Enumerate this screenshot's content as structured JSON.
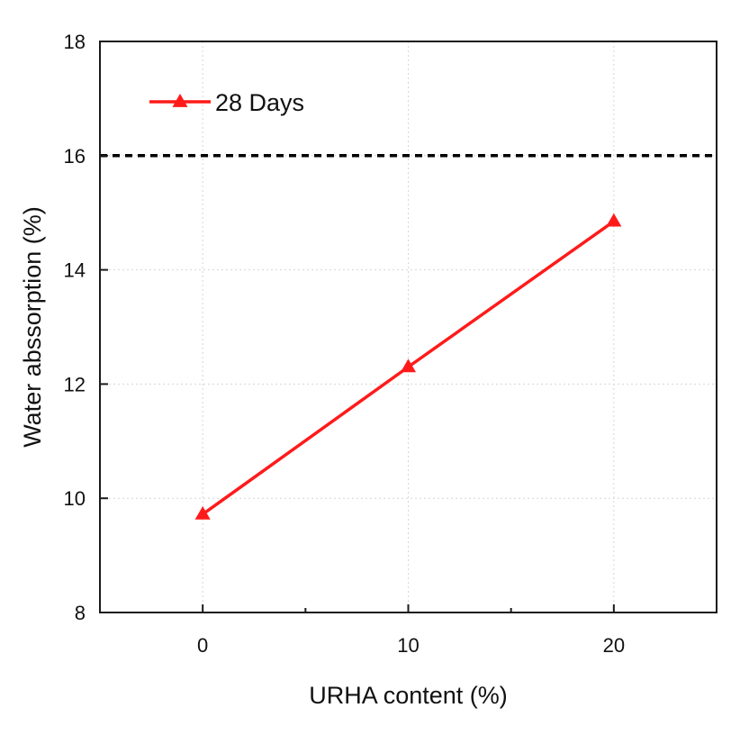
{
  "chart_data": {
    "type": "line",
    "title": "",
    "xlabel": "URHA content (%)",
    "ylabel": "Water abssorption (%)",
    "xlim": [
      -5,
      25
    ],
    "ylim": [
      8,
      18
    ],
    "x_ticks": [
      0,
      10,
      20
    ],
    "x_tick_labels": [
      "0",
      "10",
      "20"
    ],
    "x_minor_ticks": [
      5,
      15
    ],
    "y_ticks": [
      8,
      10,
      12,
      14,
      16,
      18
    ],
    "y_tick_labels": [
      "8",
      "10",
      "12",
      "14",
      "16",
      "18"
    ],
    "grid": true,
    "legend_position": "top-left",
    "series": [
      {
        "name": "28 Days",
        "color": "#ff1a1a",
        "marker": "triangle",
        "x": [
          0,
          10,
          20
        ],
        "y": [
          9.72,
          12.3,
          14.85
        ]
      }
    ],
    "reference_line": {
      "orientation": "horizontal",
      "y": 16,
      "style": "dashed",
      "color": "#000000"
    }
  }
}
